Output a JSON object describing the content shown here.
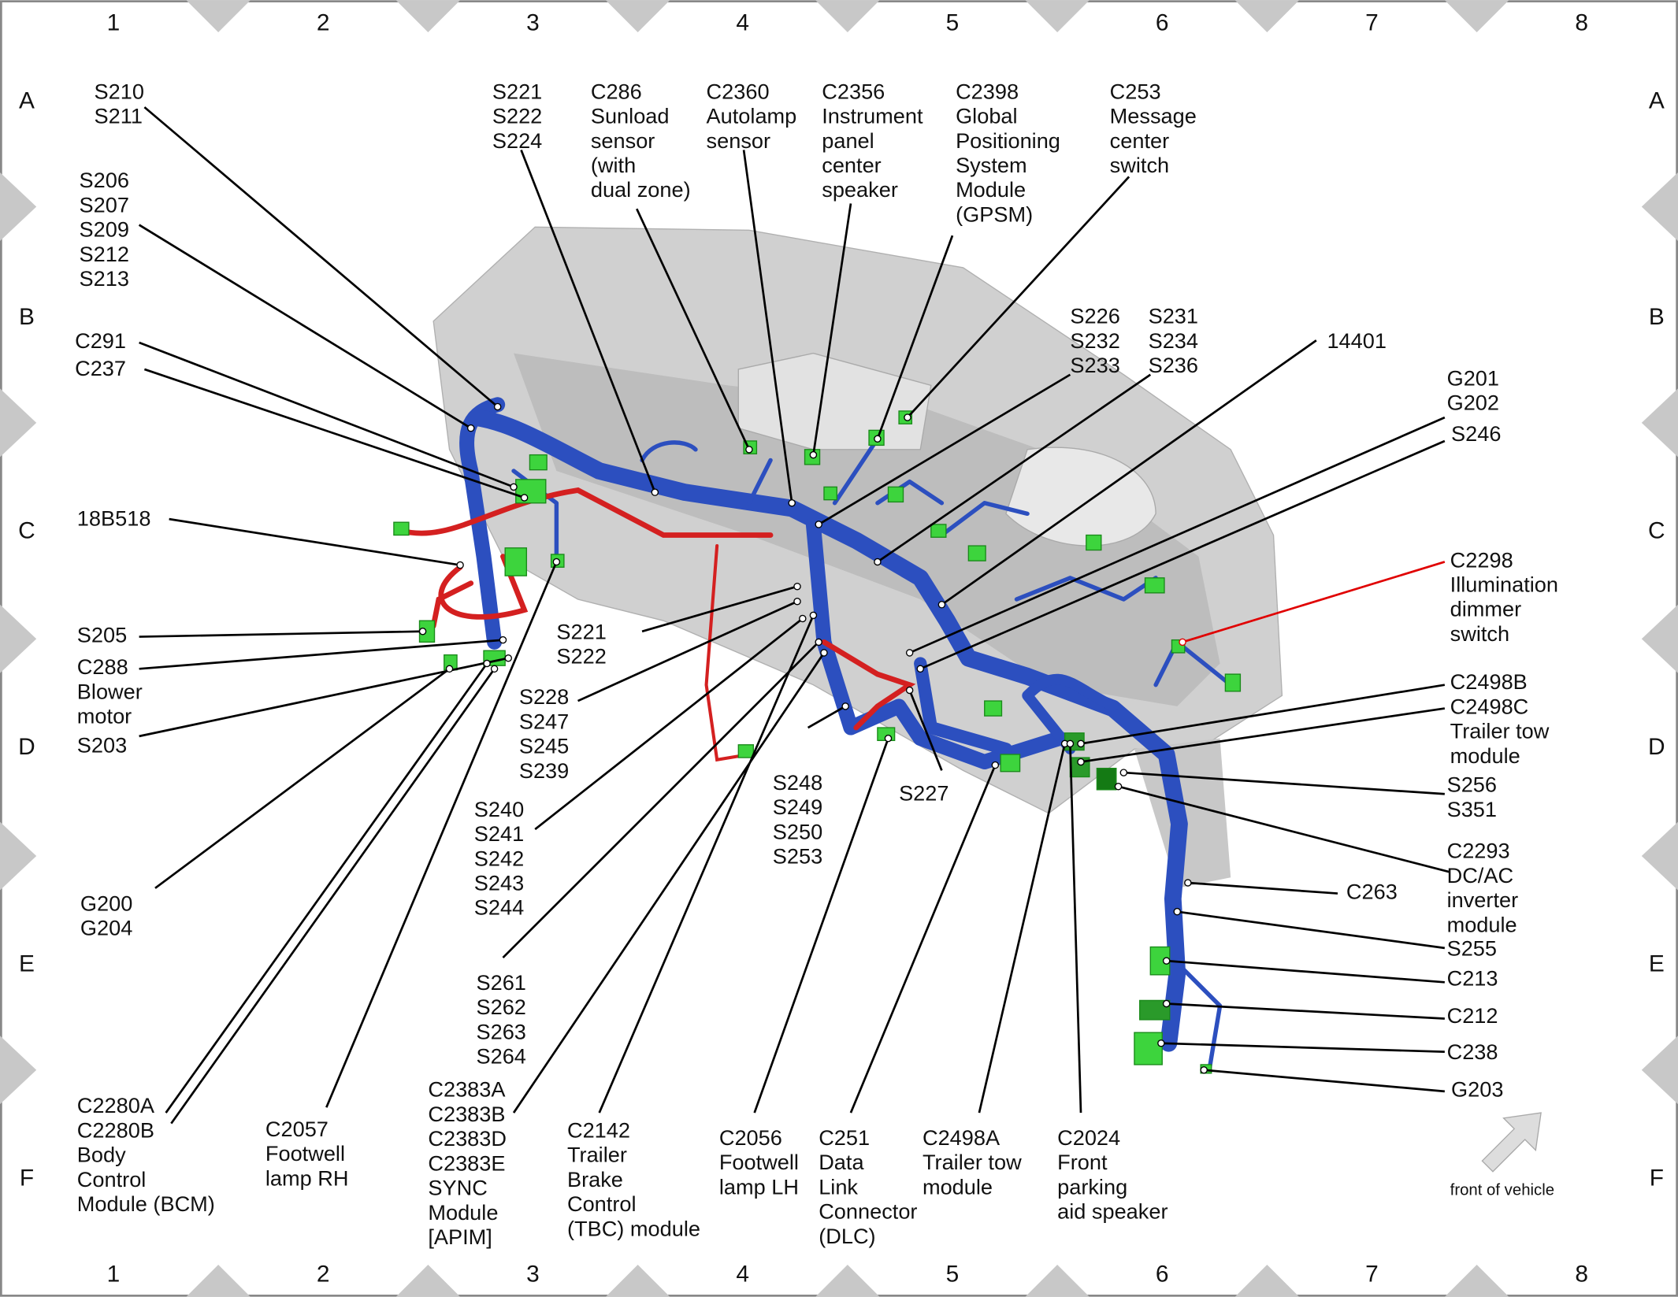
{
  "grid": {
    "columns": [
      "1",
      "2",
      "3",
      "4",
      "5",
      "6",
      "7",
      "8"
    ],
    "rows": [
      "A",
      "B",
      "C",
      "D",
      "E",
      "F"
    ]
  },
  "labels": [
    {
      "lines": [
        "S210",
        "S211"
      ]
    },
    {
      "lines": [
        "S206",
        "S207",
        "S209",
        "S212",
        "S213"
      ]
    },
    {
      "lines": [
        "C291"
      ]
    },
    {
      "lines": [
        "C237"
      ]
    },
    {
      "lines": [
        "18B518"
      ]
    },
    {
      "lines": [
        "S205"
      ]
    },
    {
      "lines": [
        "C288",
        "Blower",
        "motor"
      ]
    },
    {
      "lines": [
        "S203"
      ]
    },
    {
      "lines": [
        "G200",
        "G204"
      ]
    },
    {
      "lines": [
        "C2280A",
        "C2280B",
        "Body",
        "Control",
        "Module (BCM)"
      ]
    },
    {
      "lines": [
        "C2057",
        "Footwell",
        "lamp RH"
      ]
    },
    {
      "lines": [
        "S221",
        "S222",
        "S224"
      ]
    },
    {
      "lines": [
        "C286",
        "Sunload",
        "sensor",
        "(with",
        "dual zone)"
      ]
    },
    {
      "lines": [
        "C2360",
        "Autolamp",
        "sensor"
      ]
    },
    {
      "lines": [
        "C2356",
        "Instrument",
        "panel",
        "center",
        "speaker"
      ]
    },
    {
      "lines": [
        "C2398",
        "Global",
        "Positioning",
        "System",
        "Module",
        "(GPSM)"
      ]
    },
    {
      "lines": [
        "C253",
        "Message",
        "center",
        "switch"
      ]
    },
    {
      "lines": [
        "S226",
        "S232",
        "S233"
      ]
    },
    {
      "lines": [
        "S231",
        "S234",
        "S236"
      ]
    },
    {
      "lines": [
        "14401"
      ]
    },
    {
      "lines": [
        "G201",
        "G202"
      ]
    },
    {
      "lines": [
        "S246"
      ]
    },
    {
      "lines": [
        "C2298",
        "Illumination",
        "dimmer",
        "switch"
      ],
      "color": "#e00000"
    },
    {
      "lines": [
        "C2498B",
        "C2498C",
        "Trailer tow",
        "module"
      ]
    },
    {
      "lines": [
        "S256",
        "S351"
      ]
    },
    {
      "lines": [
        "C2293",
        "DC/AC",
        "inverter",
        "module"
      ]
    },
    {
      "lines": [
        "C263"
      ]
    },
    {
      "lines": [
        "S255"
      ]
    },
    {
      "lines": [
        "C213"
      ]
    },
    {
      "lines": [
        "C212"
      ]
    },
    {
      "lines": [
        "C238"
      ]
    },
    {
      "lines": [
        "G203"
      ]
    },
    {
      "lines": [
        "S221",
        "S222"
      ]
    },
    {
      "lines": [
        "S228",
        "S247",
        "S245",
        "S239"
      ]
    },
    {
      "lines": [
        "S240",
        "S241",
        "S242",
        "S243",
        "S244"
      ]
    },
    {
      "lines": [
        "S261",
        "S262",
        "S263",
        "S264"
      ]
    },
    {
      "lines": [
        "C2383A",
        "C2383B",
        "C2383D",
        "C2383E",
        "SYNC",
        "Module",
        "[APIM]"
      ]
    },
    {
      "lines": [
        "C2142",
        "Trailer",
        "Brake",
        "Control",
        "(TBC) module"
      ]
    },
    {
      "lines": [
        "C2056",
        "Footwell",
        "lamp LH"
      ]
    },
    {
      "lines": [
        "S248",
        "S249",
        "S250",
        "S253"
      ]
    },
    {
      "lines": [
        "S227"
      ]
    },
    {
      "lines": [
        "C251",
        "Data",
        "Link",
        "Connector",
        "(DLC)"
      ]
    },
    {
      "lines": [
        "C2498A",
        "Trailer tow",
        "module"
      ]
    },
    {
      "lines": [
        "C2024",
        "Front",
        "parking",
        "aid speaker"
      ]
    }
  ],
  "orientation_note": "front of vehicle"
}
